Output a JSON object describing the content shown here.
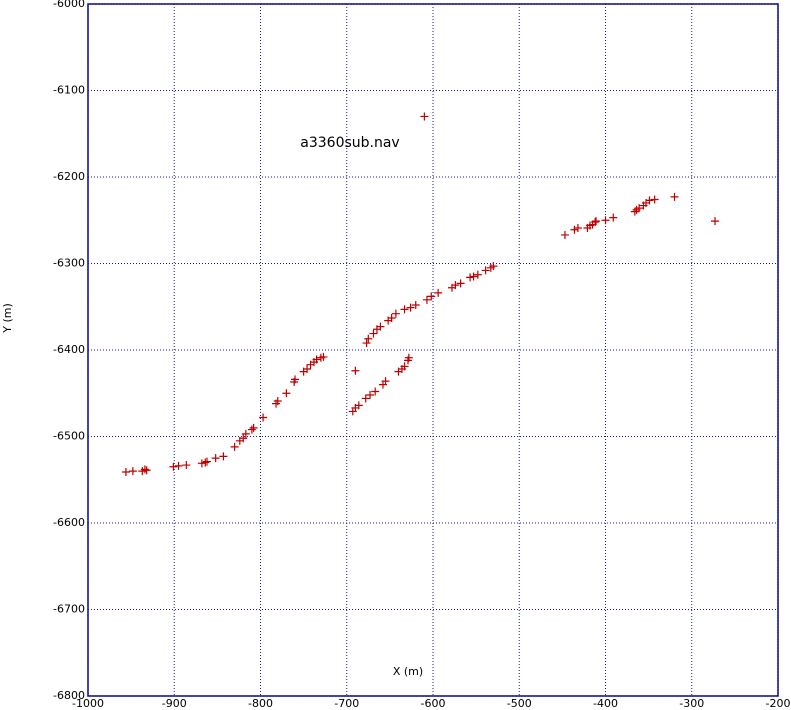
{
  "chart_data": {
    "type": "scatter",
    "title": "a3360sub.nav",
    "x_label": "X (m)",
    "y_label": "Y (m)",
    "x": [
      -956,
      -948,
      -937,
      -934,
      -932,
      -901,
      -895,
      -886,
      -868,
      -864,
      -862,
      -852,
      -843,
      -830,
      -824,
      -820,
      -817,
      -810,
      -808,
      -797,
      -782,
      -780,
      -770,
      -761,
      -760,
      -750,
      -746,
      -742,
      -738,
      -735,
      -730,
      -727,
      -693,
      -690,
      -686,
      -678,
      -673,
      -667,
      -658,
      -655,
      -640,
      -636,
      -633,
      -629,
      -628,
      -690,
      -677,
      -675,
      -669,
      -665,
      -661,
      -652,
      -648,
      -643,
      -633,
      -626,
      -620,
      -607,
      -602,
      -594,
      -578,
      -574,
      -568,
      -557,
      -553,
      -548,
      -539,
      -533,
      -530,
      -610,
      -447,
      -436,
      -432,
      -421,
      -418,
      -415,
      -412,
      -411,
      -400,
      -391,
      -366,
      -364,
      -361,
      -356,
      -353,
      -349,
      -343,
      -320,
      -273
    ],
    "values": [
      -6541,
      -6540,
      -6540,
      -6538,
      -6539,
      -6535,
      -6534,
      -6533,
      -6531,
      -6530,
      -6529,
      -6525,
      -6523,
      -6512,
      -6505,
      -6502,
      -6497,
      -6492,
      -6490,
      -6478,
      -6462,
      -6459,
      -6450,
      -6437,
      -6434,
      -6425,
      -6422,
      -6417,
      -6414,
      -6411,
      -6409,
      -6408,
      -6471,
      -6467,
      -6464,
      -6456,
      -6452,
      -6448,
      -6440,
      -6436,
      -6425,
      -6422,
      -6419,
      -6412,
      -6409,
      -6424,
      -6392,
      -6387,
      -6381,
      -6376,
      -6373,
      -6366,
      -6363,
      -6358,
      -6353,
      -6351,
      -6348,
      -6342,
      -6338,
      -6334,
      -6328,
      -6325,
      -6323,
      -6316,
      -6315,
      -6313,
      -6308,
      -6305,
      -6303,
      -6130,
      -6267,
      -6261,
      -6259,
      -6259,
      -6256,
      -6255,
      -6252,
      -6251,
      -6250,
      -6247,
      -6240,
      -6238,
      -6236,
      -6233,
      -6230,
      -6227,
      -6226,
      -6223,
      -6251
    ],
    "color": "#c00000",
    "xlim": [
      -1000,
      -200
    ],
    "xticks": [
      -1000,
      -900,
      -800,
      -700,
      -600,
      -500,
      -400,
      -300,
      -200
    ],
    "ylim": [
      -6800,
      -6000
    ],
    "yticks": [
      -6000,
      -6100,
      -6200,
      -6300,
      -6400,
      -6500,
      -6600,
      -6700,
      -6800
    ],
    "grid": true
  }
}
